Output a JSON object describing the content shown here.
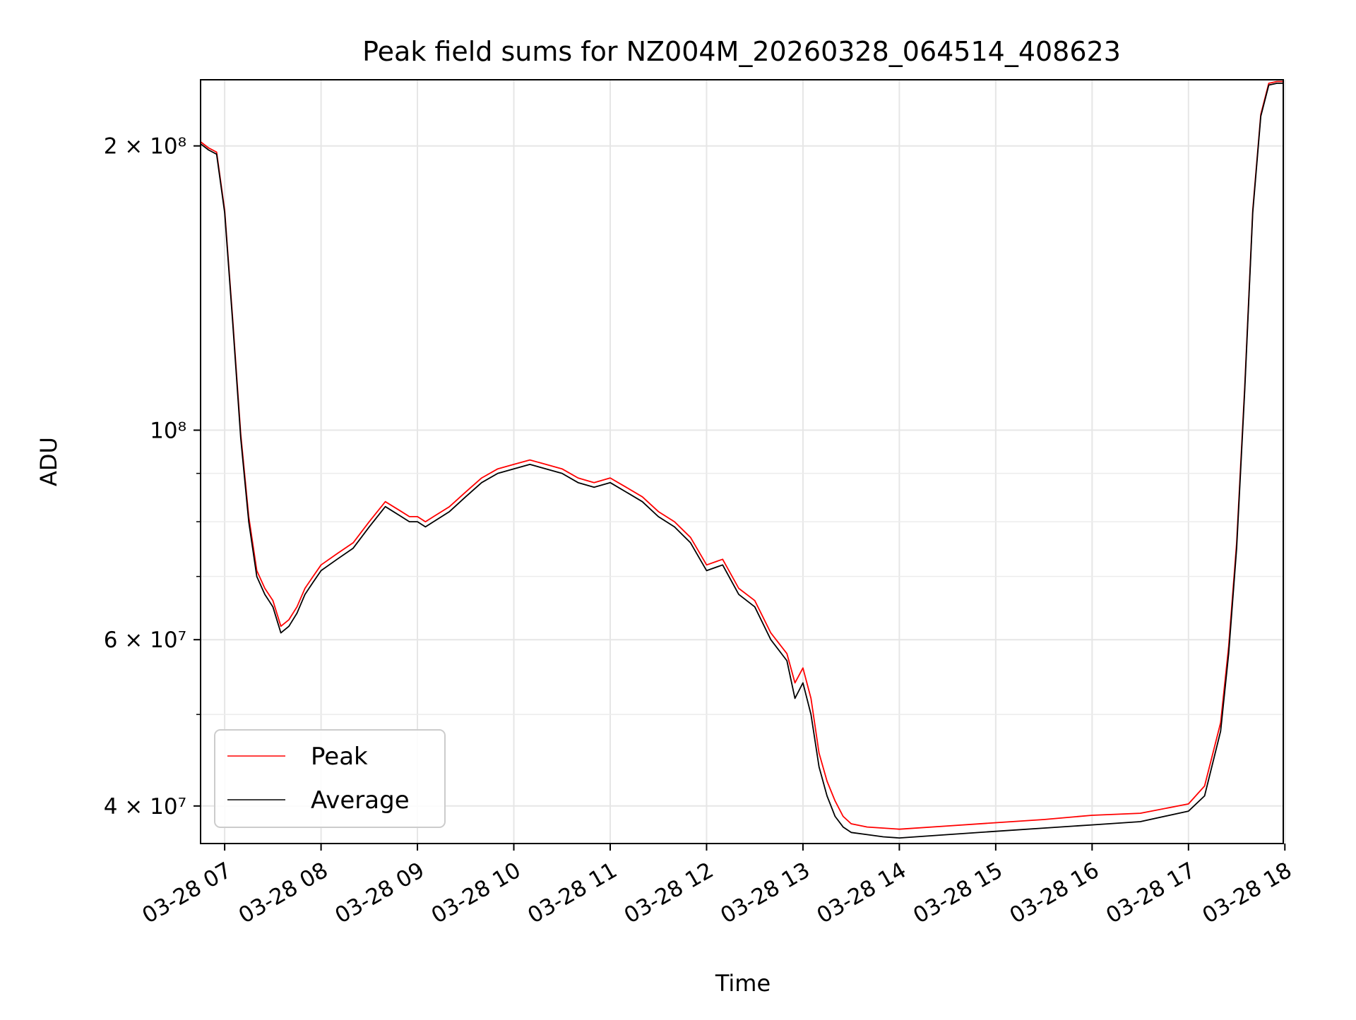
{
  "chart_data": {
    "type": "line",
    "title": "Peak field sums for NZ004M_20260328_064514_408623",
    "xlabel": "Time",
    "ylabel": "ADU",
    "yscale": "log",
    "ylim": [
      36500000,
      235000000
    ],
    "xlim": [
      "03-28 06:45",
      "03-28 17:59"
    ],
    "grid": true,
    "legend_position": "lower-left",
    "x_ticks": [
      "03-28 07",
      "03-28 08",
      "03-28 09",
      "03-28 10",
      "03-28 11",
      "03-28 12",
      "03-28 13",
      "03-28 14",
      "03-28 15",
      "03-28 16",
      "03-28 17",
      "03-28 18"
    ],
    "y_ticks_major": [
      {
        "value": 40000000,
        "label": "4 × 10⁷"
      },
      {
        "value": 60000000,
        "label": "6 × 10⁷"
      },
      {
        "value": 100000000,
        "label": "10⁸"
      },
      {
        "value": 200000000,
        "label": "2 × 10⁸"
      }
    ],
    "y_ticks_minor": [
      50000000,
      70000000,
      80000000,
      90000000
    ],
    "series": [
      {
        "name": "Peak",
        "color": "#ff0000"
      },
      {
        "name": "Average",
        "color": "#000000"
      }
    ],
    "x": [
      "06:45",
      "06:50",
      "06:55",
      "07:00",
      "07:05",
      "07:10",
      "07:15",
      "07:20",
      "07:25",
      "07:30",
      "07:35",
      "07:40",
      "07:45",
      "07:50",
      "07:55",
      "08:00",
      "08:10",
      "08:20",
      "08:30",
      "08:40",
      "08:50",
      "08:55",
      "09:00",
      "09:05",
      "09:10",
      "09:20",
      "09:30",
      "09:40",
      "09:50",
      "10:00",
      "10:10",
      "10:20",
      "10:30",
      "10:40",
      "10:50",
      "11:00",
      "11:10",
      "11:20",
      "11:30",
      "11:40",
      "11:50",
      "12:00",
      "12:10",
      "12:20",
      "12:30",
      "12:40",
      "12:50",
      "12:55",
      "13:00",
      "13:05",
      "13:10",
      "13:15",
      "13:20",
      "13:25",
      "13:30",
      "13:40",
      "13:50",
      "14:00",
      "14:30",
      "15:00",
      "15:30",
      "16:00",
      "16:30",
      "17:00",
      "17:10",
      "17:20",
      "17:25",
      "17:30",
      "17:35",
      "17:40",
      "17:45",
      "17:50",
      "17:55",
      "17:59"
    ],
    "values_average": [
      201000000,
      198000000,
      196000000,
      170000000,
      130000000,
      98000000,
      80000000,
      70000000,
      67000000,
      65000000,
      61000000,
      62000000,
      64000000,
      67000000,
      69000000,
      71000000,
      73000000,
      75000000,
      79000000,
      83000000,
      81000000,
      80000000,
      80000000,
      79000000,
      80000000,
      82000000,
      85000000,
      88000000,
      90000000,
      91000000,
      92000000,
      91000000,
      90000000,
      88000000,
      87000000,
      88000000,
      86000000,
      84000000,
      81000000,
      79000000,
      76000000,
      71000000,
      72000000,
      67000000,
      65000000,
      60000000,
      57000000,
      52000000,
      54000000,
      50000000,
      44000000,
      41000000,
      39000000,
      38000000,
      37500000,
      37300000,
      37100000,
      37000000,
      37300000,
      37600000,
      37900000,
      38200000,
      38500000,
      39500000,
      41000000,
      48000000,
      58000000,
      75000000,
      110000000,
      170000000,
      215000000,
      232000000,
      233000000,
      233000000
    ],
    "values_peak": [
      202000000,
      199000000,
      197000000,
      171000000,
      131000000,
      99000000,
      81000000,
      71000000,
      68000000,
      66000000,
      62000000,
      63000000,
      65000000,
      68000000,
      70000000,
      72000000,
      74000000,
      76000000,
      80000000,
      84000000,
      82000000,
      81000000,
      81000000,
      80000000,
      81000000,
      83000000,
      86000000,
      89000000,
      91000000,
      92000000,
      93000000,
      92000000,
      91000000,
      89000000,
      88000000,
      89000000,
      87000000,
      85000000,
      82000000,
      80000000,
      77000000,
      72000000,
      73000000,
      68000000,
      66000000,
      61000000,
      58000000,
      54000000,
      56000000,
      52000000,
      45500000,
      42500000,
      40500000,
      39000000,
      38300000,
      38000000,
      37900000,
      37800000,
      38100000,
      38400000,
      38700000,
      39100000,
      39300000,
      40200000,
      42000000,
      49000000,
      59000000,
      76000000,
      111000000,
      171000000,
      216000000,
      233000000,
      234000000,
      234000000
    ]
  }
}
